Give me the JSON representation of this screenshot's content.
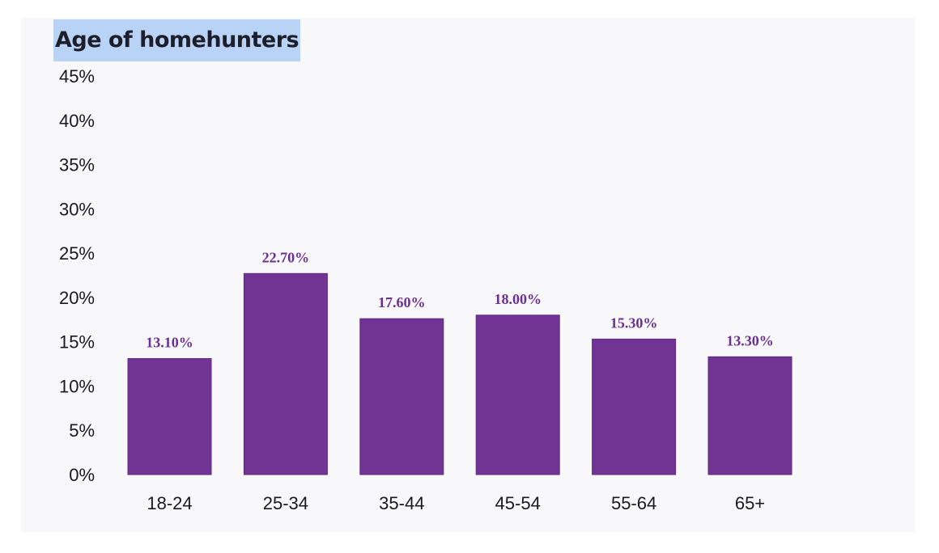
{
  "chart_data": {
    "type": "bar",
    "title": "Age of homehunters",
    "xlabel": "",
    "ylabel": "",
    "categories": [
      "18-24",
      "25-34",
      "35-44",
      "45-54",
      "55-64",
      "65+"
    ],
    "values": [
      13.1,
      22.7,
      17.6,
      18.0,
      15.3,
      13.3
    ],
    "data_labels": [
      "13.10%",
      "22.70%",
      "17.60%",
      "18.00%",
      "15.30%",
      "13.30%"
    ],
    "ylim": [
      0,
      45
    ],
    "yticks": [
      "0%",
      "5%",
      "10%",
      "15%",
      "20%",
      "25%",
      "30%",
      "35%",
      "40%",
      "45%"
    ],
    "ytick_values": [
      0,
      5,
      10,
      15,
      20,
      25,
      30,
      35,
      40,
      45
    ],
    "grid": false,
    "legend": "none",
    "colors": {
      "bar": "#723494",
      "label": "#6b2f8f",
      "title_highlight": "#b9d3f7",
      "background": "#f8f8fb"
    }
  }
}
